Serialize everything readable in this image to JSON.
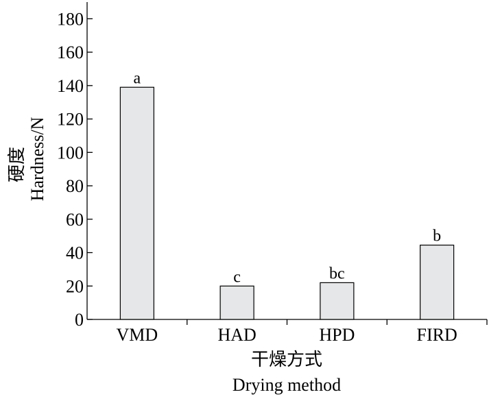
{
  "chart_data": {
    "type": "bar",
    "categories": [
      "VMD",
      "HAD",
      "HPD",
      "FIRD"
    ],
    "values": [
      139,
      20,
      22,
      44.5
    ],
    "data_labels": [
      "a",
      "c",
      "bc",
      "b"
    ],
    "ylim": [
      0,
      190
    ],
    "yticks": [
      0,
      20,
      40,
      60,
      80,
      100,
      120,
      140,
      160,
      180
    ],
    "ylabel_cn": "硬度",
    "ylabel_en": "Hardness/N",
    "xlabel_cn": "干燥方式",
    "xlabel_en": "Drying method",
    "bar_color": "#e6e7e8",
    "bar_stroke": "#000000",
    "grid": false,
    "legend": "none"
  }
}
